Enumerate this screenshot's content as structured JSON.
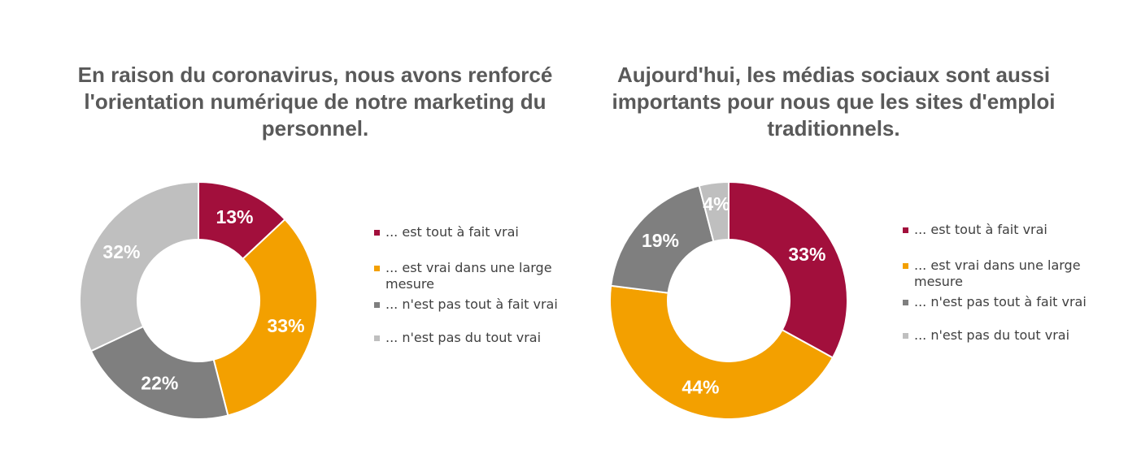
{
  "colors": {
    "title": "#595959",
    "label": "#ffffff"
  },
  "legend_items": [
    {
      "label": "... est tout à fait vrai",
      "color": "#A20F3C"
    },
    {
      "label": "... est vrai dans une large mesure",
      "color": "#F3A000"
    },
    {
      "label": "... n'est pas tout à fait vrai",
      "color": "#7F7F7F"
    },
    {
      "label": "... n'est pas du tout vrai",
      "color": "#BFBFBF"
    }
  ],
  "chart_data": [
    {
      "type": "pie",
      "variant": "donut",
      "title": "En raison du coronavirus, nous avons renforcé l'orientation numérique de notre marketing du personnel.",
      "categories": [
        "... est tout à fait vrai",
        "... est vrai dans une large mesure",
        "... n'est pas tout à fait vrai",
        "... n'est pas du tout vrai"
      ],
      "values": [
        13,
        33,
        22,
        32
      ],
      "data_labels": [
        "13%",
        "33%",
        "22%",
        "32%"
      ],
      "legend": "right"
    },
    {
      "type": "pie",
      "variant": "donut",
      "title": "Aujourd'hui, les médias sociaux sont aussi importants pour nous que les sites d'emploi traditionnels.",
      "categories": [
        "... est tout à fait vrai",
        "... est vrai dans une large mesure",
        "... n'est pas tout à fait vrai",
        "... n'est pas du tout vrai"
      ],
      "values": [
        33,
        44,
        19,
        4
      ],
      "data_labels": [
        "33%",
        "44%",
        "19%",
        "4%"
      ],
      "legend": "right"
    }
  ]
}
